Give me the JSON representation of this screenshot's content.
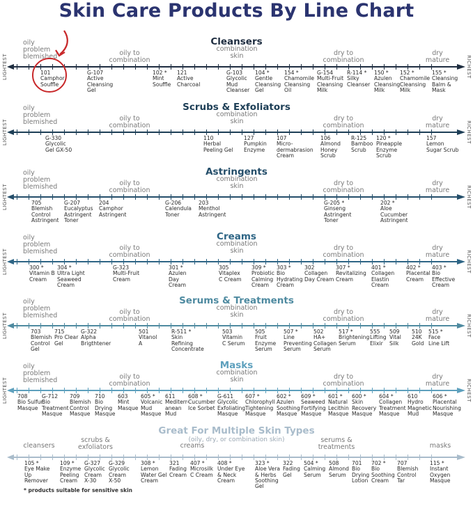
{
  "title": "Skin Care Products By Line Chart",
  "end_labels": {
    "left": "LIGHTEST",
    "right": "RICHEST"
  },
  "skin_types": {
    "oily": "oily\nproblem\nblemished",
    "oily_combo": "oily to\ncombination",
    "combo": "combination\nskin",
    "dry_combo": "dry to\ncombination",
    "dry": "dry\nmature"
  },
  "highlight_color": "#c8282a",
  "sections": [
    {
      "title": "Cleansers",
      "color": "#1e2d40",
      "products": [
        {
          "code": "101",
          "name": "Camphor\nSouffle"
        },
        {
          "code": "G-107",
          "name": "Active\nCleansing\nGel"
        },
        {
          "code": "102 *",
          "name": "Mint\nSouffle"
        },
        {
          "code": "121",
          "name": "Active\nCharcoal"
        },
        {
          "code": "G-103",
          "name": "Glycolic\nMud\nCleanser"
        },
        {
          "code": "104 *",
          "name": "Gentle\nCleansing\nGel"
        },
        {
          "code": "154 *",
          "name": "Chamomile\nCleansing\nOil"
        },
        {
          "code": "G-154",
          "name": "Multi-Fruit\nCleansing\nMilk"
        },
        {
          "code": "R-114 *",
          "name": "Silky\nCleanser"
        },
        {
          "code": "150 *",
          "name": "Azulen\nCleansing\nMilk"
        },
        {
          "code": "152 *",
          "name": "Chamomile\nCleansing\nMilk"
        },
        {
          "code": "155 *",
          "name": "Cleansing\nBalm &\nMask"
        }
      ]
    },
    {
      "title": "Scrubs & Exfoliators",
      "color": "#1d3e56",
      "products": [
        {
          "code": "G-330",
          "name": "Glycolic\nGel GX-50"
        },
        {
          "code": "110",
          "name": "Herbal\nPeeling Gel"
        },
        {
          "code": "127",
          "name": "Pumpkin\nEnzyme"
        },
        {
          "code": "107",
          "name": "Micro-\ndermabrasion\nCream"
        },
        {
          "code": "106",
          "name": "Almond\nHoney\nScrub"
        },
        {
          "code": "R-125",
          "name": "Bamboo\nScrub"
        },
        {
          "code": "120 *",
          "name": "Pineapple\nEnzyme\nScrub"
        },
        {
          "code": "157",
          "name": "Lemon\nSugar Scrub"
        }
      ]
    },
    {
      "title": "Astringents",
      "color": "#244e6a",
      "products": [
        {
          "code": "705",
          "name": "Blemish\nControl\nAstringent"
        },
        {
          "code": "G-207",
          "name": "Eucalyptus\nAstringent\nToner"
        },
        {
          "code": "204",
          "name": "Camphor\nAstringent"
        },
        {
          "code": "G-206",
          "name": "Calendula\nToner"
        },
        {
          "code": "203",
          "name": "Menthol\nAstringent"
        },
        {
          "code": "G-205 *",
          "name": "Ginseng\nAstringent\nToner"
        },
        {
          "code": "202 *",
          "name": "Aloe\nCucumber\nAstringent"
        }
      ]
    },
    {
      "title": "Creams",
      "color": "#2e6585",
      "products": [
        {
          "code": "300 *",
          "name": "Vitamin B\nCream"
        },
        {
          "code": "304 *",
          "name": "Ultra Light\nSeaweed\nCream"
        },
        {
          "code": "G-323",
          "name": "Multi-Fruit\nCream"
        },
        {
          "code": "301 *",
          "name": "Azulen\nDay\nCream"
        },
        {
          "code": "305",
          "name": "Vitaplex\nC Cream"
        },
        {
          "code": "309 *",
          "name": "Probiotic\nCalming\nCream"
        },
        {
          "code": "303 *",
          "name": "Bio\nHydrating\nCream"
        },
        {
          "code": "302",
          "name": "Collagen\nDay Cream"
        },
        {
          "code": "307 *",
          "name": "Revitalizing\nCream"
        },
        {
          "code": "401 *",
          "name": "Collagen\nElastin\nCream"
        },
        {
          "code": "402 *",
          "name": "Placental\nCream"
        },
        {
          "code": "403 *",
          "name": "Bio\nEffective\nCream"
        }
      ]
    },
    {
      "title": "Serums & Treatments",
      "color": "#4e8aa0",
      "products": [
        {
          "code": "703",
          "name": "Blemish\nControl\nGel"
        },
        {
          "code": "715",
          "name": "Pro Clear\nGel"
        },
        {
          "code": "G-322",
          "name": "Alpha\nBrigthtener"
        },
        {
          "code": "501",
          "name": "Vitanol\nA"
        },
        {
          "code": "R-511 *",
          "name": "Skin\nRefining\nConcentrate"
        },
        {
          "code": "503",
          "name": "Vitamin\nC Serum"
        },
        {
          "code": "505",
          "name": "Fruit\nEnzyme\nSerum"
        },
        {
          "code": "507 *",
          "name": "Line\nPreventing\nSerum"
        },
        {
          "code": "502",
          "name": "HA+\nCollagen\nSerum"
        },
        {
          "code": "517 *",
          "name": "Brightening\nSerum"
        },
        {
          "code": "555",
          "name": "Lifting\nElixir"
        },
        {
          "code": "509",
          "name": "Vital\nSilk"
        },
        {
          "code": "510",
          "name": "24K\nGold"
        },
        {
          "code": "515 *",
          "name": "Face\nLine Lift"
        }
      ]
    },
    {
      "title": "Masks",
      "color": "#5ea0bd",
      "products": [
        {
          "code": "708",
          "name": "Bio Sulfur\nMasque"
        },
        {
          "code": "G-712",
          "name": "Bio\nTreatment\nMasque"
        },
        {
          "code": "709",
          "name": "Blemish\nControl\nMasque"
        },
        {
          "code": "710",
          "name": "Bio\nDrying\nMasque"
        },
        {
          "code": "603",
          "name": "Mint\nMasque"
        },
        {
          "code": "605 *",
          "name": "Volcanic\nMud\nMasque"
        },
        {
          "code": "611",
          "name": "Mediterr-\nanean\nMud"
        },
        {
          "code": "608 *",
          "name": "Cucumber\nIce Sorbet"
        },
        {
          "code": "G-611",
          "name": "Glycolic\nExfoliating\nMasque"
        },
        {
          "code": "607 *",
          "name": "Chlorophyll\nTightening\nMasque"
        },
        {
          "code": "602 *",
          "name": "Azulen\nSoothing\nMasque"
        },
        {
          "code": "609 *",
          "name": "Seaweed\nFortifying\nMasque"
        },
        {
          "code": "601 *",
          "name": "Natural\nLecithin\nMasque"
        },
        {
          "code": "600 *",
          "name": "Skin\nRecovery\nMasque"
        },
        {
          "code": "604 *",
          "name": "Collagen\nTreatment\nMasque"
        },
        {
          "code": "610",
          "name": "Hydro\nMagnetic\nMud"
        },
        {
          "code": "606 *",
          "name": "Placental\nNourishing\nMasque"
        }
      ]
    }
  ],
  "multi": {
    "title": "Great For Multiple Skin Types",
    "subtitle": "(oily, dry, or combination skin)",
    "color": "#a9bccb",
    "groups": [
      "cleansers",
      "scrubs &\nexfoliators",
      "creams",
      "serums &\ntreatments",
      "masks"
    ],
    "products": [
      {
        "code": "105 *",
        "name": "Eye Make\nUp\nRemover"
      },
      {
        "code": "109 *",
        "name": "Enzyme\nPeeling\nCream"
      },
      {
        "code": "G-327",
        "name": "Glycolic\nCream\nX-30"
      },
      {
        "code": "G-329",
        "name": "Glycolic\nCream\nX-50"
      },
      {
        "code": "308 *",
        "name": "Lemon\nWater Gel\nCream"
      },
      {
        "code": "321",
        "name": "Fading\nCream"
      },
      {
        "code": "407 *",
        "name": "Microsilk\nC Cream"
      },
      {
        "code": "408 *",
        "name": "Under Eye\n& Neck\nCream"
      },
      {
        "code": "323 *",
        "name": "Aloe Vera\n& Herbs\nSoothing\nGel"
      },
      {
        "code": "322",
        "name": "Fading\nGel"
      },
      {
        "code": "504 *",
        "name": "Calming\nSerum"
      },
      {
        "code": "508",
        "name": "Almond\nSerum"
      },
      {
        "code": "701",
        "name": "Bio\nDrying\nLotion"
      },
      {
        "code": "702 *",
        "name": "Bio\nSoothing\nCream"
      },
      {
        "code": "707",
        "name": "Blemish\nControl\nTar"
      },
      {
        "code": "115 *",
        "name": "Instant\nOxygen\nMasque"
      }
    ]
  },
  "footnote": "* products suitable for sensitive skin"
}
